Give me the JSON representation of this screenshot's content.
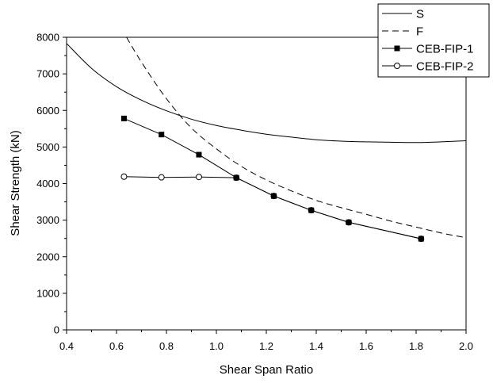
{
  "chart_data": {
    "type": "line",
    "title": "",
    "xlabel": "Shear Span Ratio",
    "ylabel": "Shear Strength (kN)",
    "xlim": [
      0.4,
      2.0
    ],
    "ylim": [
      0,
      8000
    ],
    "xticks": [
      0.4,
      0.6,
      0.8,
      1.0,
      1.2,
      1.4,
      1.6,
      1.8,
      2.0
    ],
    "xtick_labels": [
      "0.4",
      "0.6",
      "0.8",
      "1.0",
      "1.2",
      "1.4",
      "1.6",
      "1.8",
      "2.0"
    ],
    "yticks": [
      0,
      1000,
      2000,
      3000,
      4000,
      5000,
      6000,
      7000,
      8000
    ],
    "ytick_labels": [
      "0",
      "1000",
      "2000",
      "3000",
      "4000",
      "5000",
      "6000",
      "7000",
      "8000"
    ],
    "grid": false,
    "legend_position": "top-right",
    "series": [
      {
        "name": "S",
        "style": "solid",
        "marker": "none",
        "x": [
          0.4,
          0.5,
          0.6,
          0.7,
          0.8,
          0.9,
          1.0,
          1.1,
          1.2,
          1.3,
          1.4,
          1.5,
          1.6,
          1.7,
          1.8,
          1.9,
          2.0
        ],
        "y": [
          7830,
          7150,
          6650,
          6280,
          5990,
          5760,
          5590,
          5460,
          5350,
          5270,
          5200,
          5160,
          5140,
          5130,
          5120,
          5140,
          5170
        ]
      },
      {
        "name": "F",
        "style": "dashed",
        "marker": "none",
        "x": [
          0.64,
          0.7,
          0.8,
          0.9,
          1.0,
          1.1,
          1.2,
          1.3,
          1.4,
          1.5,
          1.6,
          1.7,
          1.8,
          1.9,
          2.0
        ],
        "y": [
          8000,
          7320,
          6320,
          5520,
          4950,
          4470,
          4100,
          3800,
          3540,
          3340,
          3160,
          2970,
          2810,
          2650,
          2520
        ]
      },
      {
        "name": "CEB-FIP-1",
        "style": "solid",
        "marker": "square-filled",
        "x": [
          0.63,
          0.78,
          0.93,
          1.08,
          1.23,
          1.38,
          1.53,
          1.82
        ],
        "y": [
          5780,
          5340,
          4790,
          4160,
          3660,
          3270,
          2940,
          2490
        ]
      },
      {
        "name": "CEB-FIP-2",
        "style": "solid",
        "marker": "circle-open",
        "x": [
          0.63,
          0.78,
          0.93,
          1.08,
          1.23,
          1.38,
          1.53,
          1.82
        ],
        "y": [
          4190,
          4170,
          4180,
          4160,
          3660,
          3270,
          2940,
          2490
        ]
      }
    ]
  }
}
